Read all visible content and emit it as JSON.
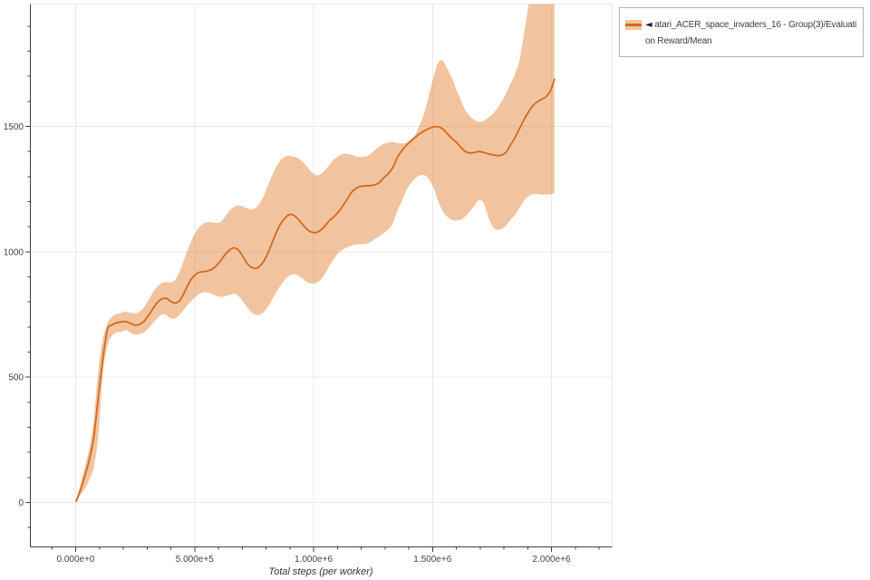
{
  "chart_data": {
    "type": "line",
    "xlabel": "Total steps (per worker)",
    "ylabel": "",
    "legend": {
      "marker": "◄",
      "label": "atari_ACER_space_invaders_16 - Group(3)/Evaluation Reward/Mean",
      "position": "top-right-outside"
    },
    "x_axis": {
      "min": -190500,
      "max": 2255000,
      "minor_step": 100000,
      "grid": true,
      "major_ticks": [
        {
          "value": 0,
          "label": "0.000e+0"
        },
        {
          "value": 500000,
          "label": "5.000e+5"
        },
        {
          "value": 1000000,
          "label": "1.000e+6"
        },
        {
          "value": 1500000,
          "label": "1.500e+6"
        },
        {
          "value": 2000000,
          "label": "2.000e+6"
        }
      ]
    },
    "y_axis": {
      "min": -177,
      "max": 1988,
      "minor_step": 100,
      "grid": true,
      "major_ticks": [
        {
          "value": 0,
          "label": "0"
        },
        {
          "value": 500,
          "label": "500"
        },
        {
          "value": 1000,
          "label": "1000"
        },
        {
          "value": 1500,
          "label": "1500"
        }
      ]
    },
    "series": [
      {
        "name": "atari_ACER_space_invaders_16 - Group(3)/Evaluation Reward/Mean",
        "color": "#d2691e",
        "band_color": "#e07f2e",
        "band_opacity": 0.46,
        "x": [
          2000,
          19000,
          38000,
          57000,
          76000,
          95000,
          114000,
          133000,
          152000,
          171000,
          191000,
          210000,
          229000,
          248000,
          267000,
          286000,
          305000,
          324000,
          343000,
          362000,
          381000,
          400000,
          419000,
          438000,
          457000,
          476000,
          495000,
          514000,
          533000,
          552000,
          572000,
          591000,
          610000,
          629000,
          648000,
          667000,
          686000,
          705000,
          724000,
          743000,
          762000,
          781000,
          800000,
          819000,
          838000,
          857000,
          876000,
          895000,
          914000,
          933000,
          953000,
          972000,
          991000,
          1010000,
          1029000,
          1048000,
          1067000,
          1086000,
          1105000,
          1124000,
          1143000,
          1162000,
          1181000,
          1200000,
          1219000,
          1238000,
          1257000,
          1276000,
          1295000,
          1314000,
          1334000,
          1353000,
          1372000,
          1391000,
          1410000,
          1429000,
          1448000,
          1467000,
          1486000,
          1505000,
          1524000,
          1543000,
          1562000,
          1581000,
          1600000,
          1619000,
          1638000,
          1657000,
          1676000,
          1695000,
          1715000,
          1734000,
          1753000,
          1772000,
          1791000,
          1810000,
          1829000,
          1848000,
          1867000,
          1886000,
          1905000,
          1924000,
          1943000,
          1962000,
          1981000,
          2000000,
          2012000
        ],
        "mean": [
          5,
          48,
          105,
          170,
          260,
          420,
          570,
          688,
          708,
          716,
          720,
          722,
          715,
          708,
          710,
          722,
          745,
          772,
          798,
          812,
          814,
          802,
          796,
          806,
          838,
          876,
          902,
          916,
          921,
          923,
          930,
          944,
          965,
          990,
          1008,
          1016,
          1005,
          978,
          950,
          936,
          935,
          950,
          978,
          1020,
          1065,
          1105,
          1130,
          1147,
          1147,
          1133,
          1110,
          1090,
          1079,
          1077,
          1086,
          1103,
          1125,
          1140,
          1160,
          1185,
          1212,
          1240,
          1255,
          1261,
          1263,
          1264,
          1267,
          1276,
          1295,
          1312,
          1338,
          1378,
          1405,
          1425,
          1442,
          1458,
          1472,
          1483,
          1492,
          1498,
          1499,
          1490,
          1471,
          1452,
          1437,
          1417,
          1400,
          1394,
          1396,
          1400,
          1396,
          1391,
          1387,
          1384,
          1386,
          1398,
          1428,
          1458,
          1494,
          1530,
          1560,
          1585,
          1600,
          1610,
          1622,
          1652,
          1688
        ],
        "lower": [
          5,
          28,
          55,
          90,
          140,
          265,
          505,
          625,
          665,
          678,
          680,
          688,
          678,
          670,
          672,
          678,
          694,
          715,
          735,
          750,
          748,
          735,
          735,
          750,
          772,
          795,
          812,
          828,
          838,
          838,
          832,
          824,
          820,
          823,
          828,
          832,
          822,
          798,
          775,
          755,
          748,
          752,
          770,
          798,
          830,
          860,
          885,
          903,
          910,
          906,
          893,
          880,
          873,
          875,
          888,
          912,
          945,
          972,
          996,
          1010,
          1018,
          1026,
          1030,
          1030,
          1031,
          1038,
          1050,
          1062,
          1075,
          1090,
          1115,
          1165,
          1205,
          1248,
          1275,
          1295,
          1305,
          1305,
          1288,
          1252,
          1200,
          1162,
          1140,
          1128,
          1125,
          1128,
          1142,
          1162,
          1185,
          1205,
          1195,
          1140,
          1100,
          1088,
          1092,
          1106,
          1128,
          1150,
          1178,
          1206,
          1222,
          1230,
          1230,
          1228,
          1229,
          1230,
          1235
        ],
        "upper": [
          5,
          68,
          140,
          215,
          330,
          525,
          650,
          715,
          740,
          752,
          757,
          762,
          757,
          755,
          760,
          778,
          805,
          838,
          860,
          875,
          880,
          878,
          888,
          925,
          972,
          1020,
          1062,
          1092,
          1110,
          1118,
          1118,
          1115,
          1120,
          1142,
          1165,
          1180,
          1185,
          1180,
          1172,
          1170,
          1180,
          1205,
          1245,
          1290,
          1330,
          1360,
          1377,
          1383,
          1380,
          1374,
          1360,
          1340,
          1318,
          1305,
          1310,
          1325,
          1348,
          1368,
          1382,
          1390,
          1390,
          1386,
          1380,
          1378,
          1380,
          1390,
          1405,
          1420,
          1430,
          1436,
          1438,
          1434,
          1432,
          1436,
          1450,
          1470,
          1510,
          1560,
          1630,
          1700,
          1755,
          1762,
          1730,
          1695,
          1648,
          1605,
          1565,
          1542,
          1525,
          1518,
          1522,
          1535,
          1550,
          1572,
          1600,
          1635,
          1672,
          1712,
          1770,
          1880,
          1990,
          2060,
          2110,
          2150,
          2165,
          2175,
          2180
        ]
      }
    ]
  },
  "colors": {
    "axis": "#404040",
    "grid": "#e9e9e9",
    "tick_label": "#444444",
    "legend_border": "#b4b4b4",
    "legend_text": "#3c3c3c"
  }
}
